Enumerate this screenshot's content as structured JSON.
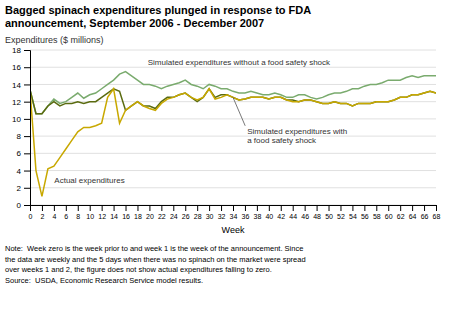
{
  "chart_data": {
    "type": "line",
    "title": "Bagged spinach expenditures plunged in response to FDA\nannouncement, September 2006 - December 2007",
    "ylabel": "Expenditures ($ millions)",
    "xlabel": "Week",
    "note": "Note:  Week zero is the week prior to and week 1 is the week of the announcement. Since\nthe data are weekly and the 5 days when there was no spinach on the market were spread\nover weeks 1 and 2, the figure does not show actual expenditures falling to zero.\nSource:  USDA, Economic Research Service model results.",
    "annotations": [
      "Simulated expenditures without a food safety shock",
      "Simulated expenditures with\na food safety shock",
      "Actual expenditures"
    ],
    "x": [
      0,
      1,
      2,
      3,
      4,
      5,
      6,
      7,
      8,
      9,
      10,
      11,
      12,
      13,
      14,
      15,
      16,
      17,
      18,
      19,
      20,
      21,
      22,
      23,
      24,
      25,
      26,
      27,
      28,
      29,
      30,
      31,
      32,
      33,
      34,
      35,
      36,
      37,
      38,
      39,
      40,
      41,
      42,
      43,
      44,
      45,
      46,
      47,
      48,
      49,
      50,
      51,
      52,
      53,
      54,
      55,
      56,
      57,
      58,
      59,
      60,
      61,
      62,
      63,
      64,
      65,
      66,
      67,
      68
    ],
    "series": [
      {
        "color": "#7aab6e",
        "values": [
          13.4,
          10.6,
          10.6,
          11.5,
          12.3,
          11.8,
          12.0,
          12.5,
          13.0,
          12.4,
          12.8,
          13.0,
          13.5,
          14.0,
          14.5,
          15.2,
          15.5,
          15.0,
          14.5,
          14.0,
          14.0,
          13.8,
          13.5,
          13.8,
          14.0,
          14.2,
          14.5,
          14.0,
          13.8,
          13.5,
          14.0,
          13.8,
          13.5,
          13.5,
          13.2,
          13.0,
          13.0,
          13.2,
          13.0,
          12.8,
          12.8,
          13.0,
          12.8,
          12.5,
          12.5,
          12.8,
          12.8,
          12.5,
          12.3,
          12.5,
          12.8,
          13.0,
          13.0,
          13.2,
          13.5,
          13.5,
          13.8,
          14.0,
          14.0,
          14.2,
          14.5,
          14.5,
          14.5,
          14.8,
          15.0,
          14.8,
          15.0,
          15.0,
          15.0
        ]
      },
      {
        "color": "#5a6b10",
        "values": [
          13.4,
          10.6,
          10.6,
          11.5,
          12.0,
          11.5,
          11.8,
          11.8,
          12.0,
          11.8,
          12.0,
          12.0,
          12.5,
          13.0,
          13.5,
          13.2,
          11.0,
          11.5,
          12.0,
          11.5,
          11.5,
          11.2,
          12.0,
          12.5,
          12.5,
          12.8,
          13.0,
          12.5,
          12.0,
          12.5,
          13.5,
          12.5,
          12.8,
          12.8,
          12.5,
          12.2,
          12.3,
          12.5,
          12.5,
          12.5,
          12.3,
          12.5,
          12.5,
          12.2,
          12.2,
          12.0,
          12.2,
          12.2,
          12.0,
          11.8,
          11.8,
          12.0,
          11.8,
          11.8,
          11.5,
          11.8,
          11.8,
          11.8,
          12.0,
          12.0,
          12.0,
          12.2,
          12.5,
          12.5,
          12.8,
          12.8,
          13.0,
          13.2,
          13.0
        ]
      },
      {
        "color": "#c8a800",
        "values": [
          13.4,
          4.0,
          1.0,
          4.2,
          4.5,
          5.5,
          6.5,
          7.5,
          8.5,
          9.0,
          9.0,
          9.2,
          9.5,
          12.5,
          13.5,
          9.5,
          11.0,
          11.5,
          12.0,
          11.5,
          11.2,
          11.0,
          11.8,
          12.3,
          12.5,
          12.8,
          13.0,
          12.5,
          12.2,
          12.5,
          13.5,
          12.3,
          12.5,
          12.8,
          12.5,
          12.2,
          12.3,
          12.5,
          12.5,
          12.5,
          12.3,
          12.5,
          12.5,
          12.2,
          12.0,
          12.0,
          12.2,
          12.2,
          12.0,
          11.8,
          11.8,
          12.0,
          11.8,
          11.8,
          11.5,
          11.8,
          11.8,
          11.8,
          12.0,
          12.0,
          12.0,
          12.2,
          12.5,
          12.5,
          12.8,
          12.8,
          13.0,
          13.2,
          13.0
        ]
      }
    ],
    "xlim": [
      0,
      68
    ],
    "ylim": [
      0,
      18
    ],
    "xticks": [
      0,
      2,
      4,
      6,
      8,
      10,
      12,
      14,
      16,
      18,
      20,
      22,
      24,
      26,
      28,
      30,
      32,
      34,
      36,
      38,
      40,
      42,
      44,
      46,
      48,
      50,
      52,
      54,
      56,
      58,
      60,
      62,
      64,
      66,
      68
    ],
    "yticks": [
      0,
      2,
      4,
      6,
      8,
      10,
      12,
      14,
      16,
      18
    ],
    "grid": true
  }
}
